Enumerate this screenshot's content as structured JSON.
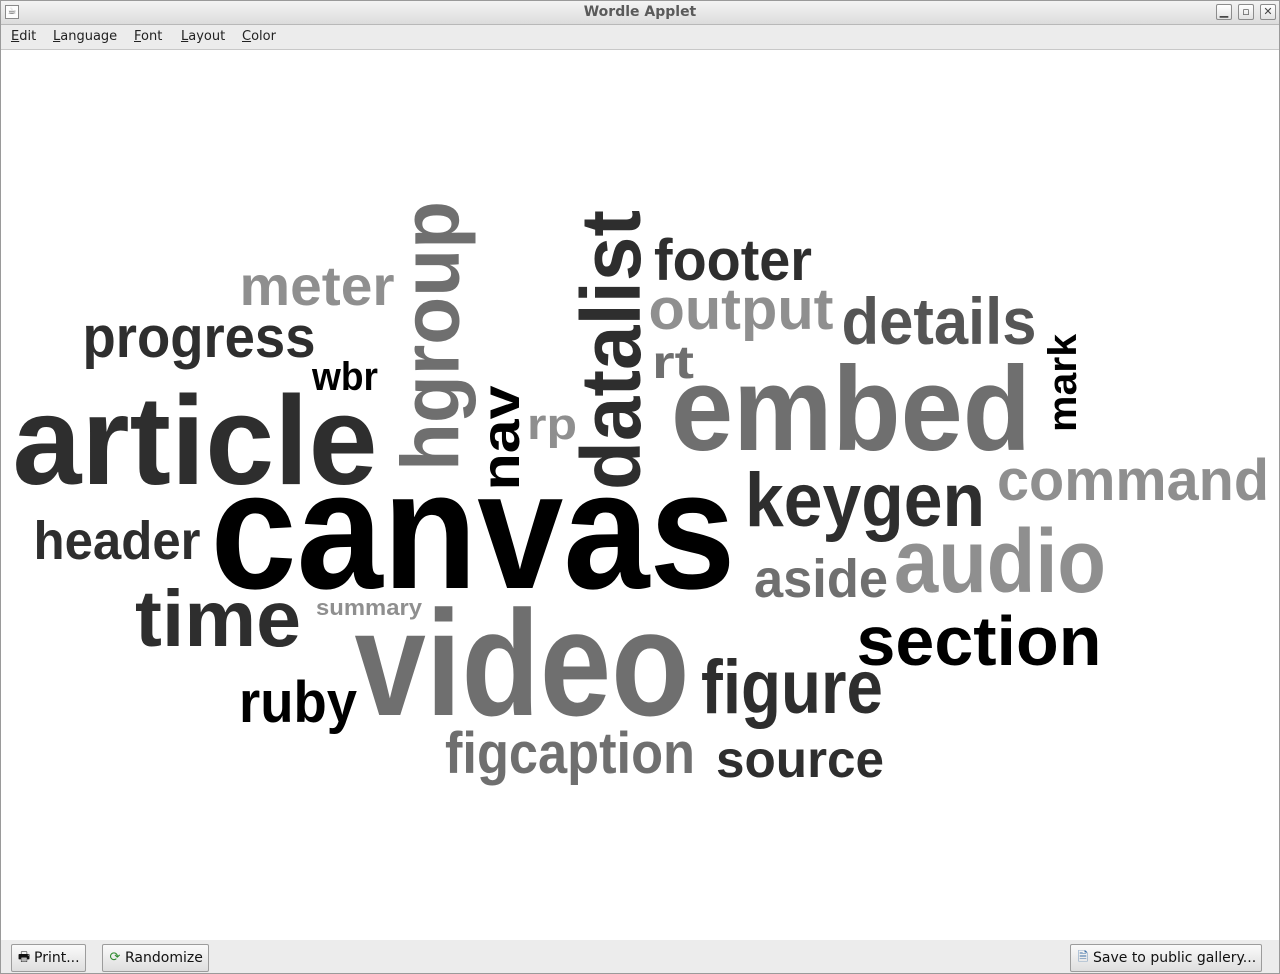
{
  "window": {
    "title": "Wordle Applet",
    "controls": {
      "minimize": "▁",
      "maximize": "▫",
      "close": "✕"
    }
  },
  "menu": {
    "items": [
      {
        "mnemonic": "E",
        "rest": "dit"
      },
      {
        "mnemonic": "L",
        "rest": "anguage"
      },
      {
        "mnemonic": "F",
        "rest": "ont"
      },
      {
        "mnemonic": "L",
        "rest": "ayout"
      },
      {
        "mnemonic": "C",
        "rest": "olor"
      }
    ]
  },
  "cloud": {
    "colors": [
      "#000000",
      "#2e2e2e",
      "#555555",
      "#6f6f6f",
      "#8f8f8f"
    ],
    "words": [
      {
        "text": "canvas",
        "shade": 0,
        "rotated": false
      },
      {
        "text": "video",
        "shade": 3,
        "rotated": false
      },
      {
        "text": "article",
        "shade": 1,
        "rotated": false
      },
      {
        "text": "embed",
        "shade": 3,
        "rotated": false
      },
      {
        "text": "hgroup",
        "shade": 3,
        "rotated": true
      },
      {
        "text": "datalist",
        "shade": 1,
        "rotated": true
      },
      {
        "text": "audio",
        "shade": 4,
        "rotated": false
      },
      {
        "text": "section",
        "shade": 0,
        "rotated": false
      },
      {
        "text": "keygen",
        "shade": 1,
        "rotated": false
      },
      {
        "text": "figure",
        "shade": 1,
        "rotated": false
      },
      {
        "text": "command",
        "shade": 4,
        "rotated": false
      },
      {
        "text": "time",
        "shade": 1,
        "rotated": false
      },
      {
        "text": "details",
        "shade": 2,
        "rotated": false
      },
      {
        "text": "progress",
        "shade": 1,
        "rotated": false
      },
      {
        "text": "footer",
        "shade": 1,
        "rotated": false
      },
      {
        "text": "output",
        "shade": 4,
        "rotated": false
      },
      {
        "text": "meter",
        "shade": 4,
        "rotated": false
      },
      {
        "text": "header",
        "shade": 1,
        "rotated": false
      },
      {
        "text": "figcaption",
        "shade": 3,
        "rotated": false
      },
      {
        "text": "source",
        "shade": 1,
        "rotated": false
      },
      {
        "text": "ruby",
        "shade": 0,
        "rotated": false
      },
      {
        "text": "aside",
        "shade": 3,
        "rotated": false
      },
      {
        "text": "nav",
        "shade": 0,
        "rotated": true
      },
      {
        "text": "mark",
        "shade": 0,
        "rotated": true
      },
      {
        "text": "rp",
        "shade": 4,
        "rotated": false
      },
      {
        "text": "rt",
        "shade": 3,
        "rotated": false
      },
      {
        "text": "wbr",
        "shade": 0,
        "rotated": false
      },
      {
        "text": "summary",
        "shade": 4,
        "rotated": false
      }
    ]
  },
  "buttons": {
    "print": {
      "label": "Print...",
      "icon": "printer-icon"
    },
    "randomize": {
      "label": "Randomize",
      "icon": "refresh-icon"
    },
    "save": {
      "label": "Save to public gallery...",
      "icon": "save-document-icon"
    }
  }
}
